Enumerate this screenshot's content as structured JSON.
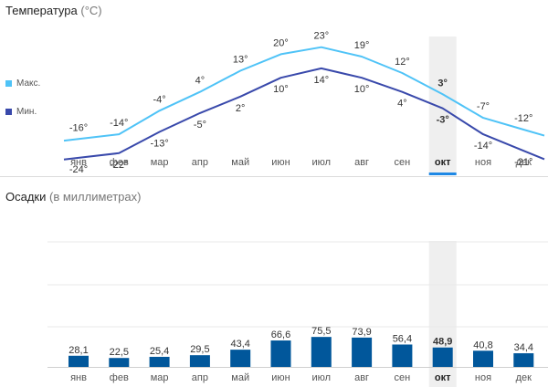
{
  "temperature": {
    "title": "Температура",
    "unit": "(°C)",
    "legend": {
      "max_label": "Макс.",
      "min_label": "Мин."
    },
    "colors": {
      "max": "#4fc3f7",
      "min": "#3949ab",
      "highlight_bg": "#efefef",
      "highlight_tab": "#1e88e5"
    }
  },
  "precipitation": {
    "title": "Осадки",
    "unit": "(в миллиметрах)",
    "colors": {
      "bar": "#01579b",
      "grid": "#e8e8e8"
    }
  },
  "chart_data": [
    {
      "type": "line",
      "title": "Температура (°C)",
      "categories": [
        "янв",
        "фев",
        "мар",
        "апр",
        "май",
        "июн",
        "июл",
        "авг",
        "сен",
        "окт",
        "ноя",
        "дек"
      ],
      "series": [
        {
          "name": "Макс.",
          "values": [
            -16,
            -14,
            -4,
            4,
            13,
            20,
            23,
            19,
            12,
            3,
            -7,
            -12
          ],
          "labels": [
            "-16°",
            "-14°",
            "-4°",
            "4°",
            "13°",
            "20°",
            "23°",
            "19°",
            "12°",
            "3°",
            "-7°",
            "-12°"
          ]
        },
        {
          "name": "Мин.",
          "values": [
            -24,
            -22,
            -13,
            -5,
            2,
            10,
            14,
            10,
            4,
            -3,
            -14,
            -21
          ],
          "labels": [
            "-24°",
            "-22°",
            "-13°",
            "-5°",
            "2°",
            "10°",
            "14°",
            "10°",
            "4°",
            "-3°",
            "-14°",
            "-21°"
          ]
        }
      ],
      "highlight_index": 9,
      "grid": false
    },
    {
      "type": "bar",
      "title": "Осадки (в миллиметрах)",
      "categories": [
        "янв",
        "фев",
        "мар",
        "апр",
        "май",
        "июн",
        "июл",
        "авг",
        "сен",
        "окт",
        "ноя",
        "дек"
      ],
      "values": [
        28.1,
        22.5,
        25.4,
        29.5,
        43.4,
        66.6,
        75.5,
        73.9,
        56.4,
        48.9,
        40.8,
        34.4
      ],
      "labels": [
        "28,1",
        "22,5",
        "25,4",
        "29,5",
        "43,4",
        "66,6",
        "75,5",
        "73,9",
        "56,4",
        "48,9",
        "40,8",
        "34,4"
      ],
      "highlight_index": 9,
      "grid": true
    }
  ]
}
